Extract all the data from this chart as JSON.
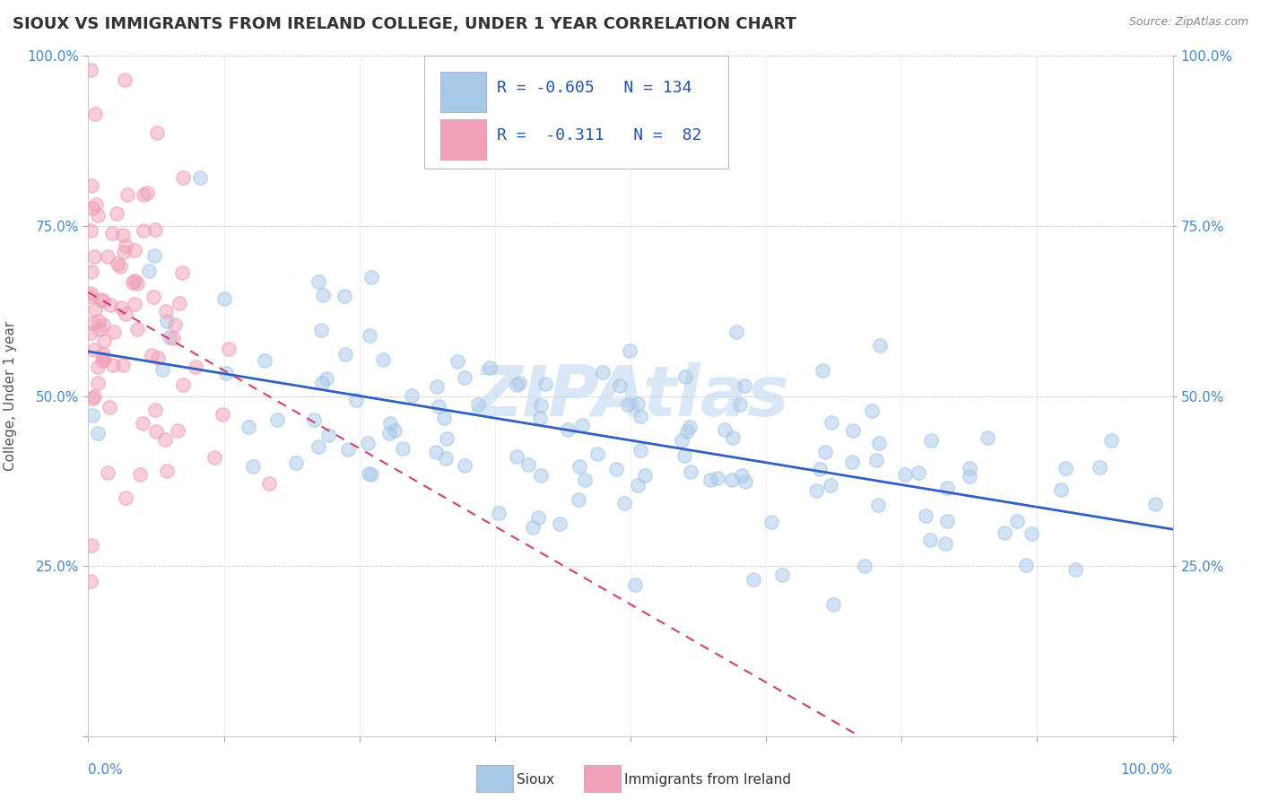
{
  "title": "SIOUX VS IMMIGRANTS FROM IRELAND COLLEGE, UNDER 1 YEAR CORRELATION CHART",
  "source": "Source: ZipAtlas.com",
  "ylabel": "College, Under 1 year",
  "blue_R": -0.605,
  "blue_N": 134,
  "pink_R": -0.311,
  "pink_N": 82,
  "blue_color": "#a8c8e8",
  "pink_color": "#f0a0b8",
  "blue_line_color": "#3060c0",
  "pink_line_color": "#d04070",
  "watermark": "ZIPAtlas",
  "watermark_color": "#c0d8f0",
  "background_color": "#ffffff",
  "grid_color": "#cccccc",
  "title_color": "#333333",
  "axis_label_color": "#4488cc",
  "ylabel_color": "#555555"
}
